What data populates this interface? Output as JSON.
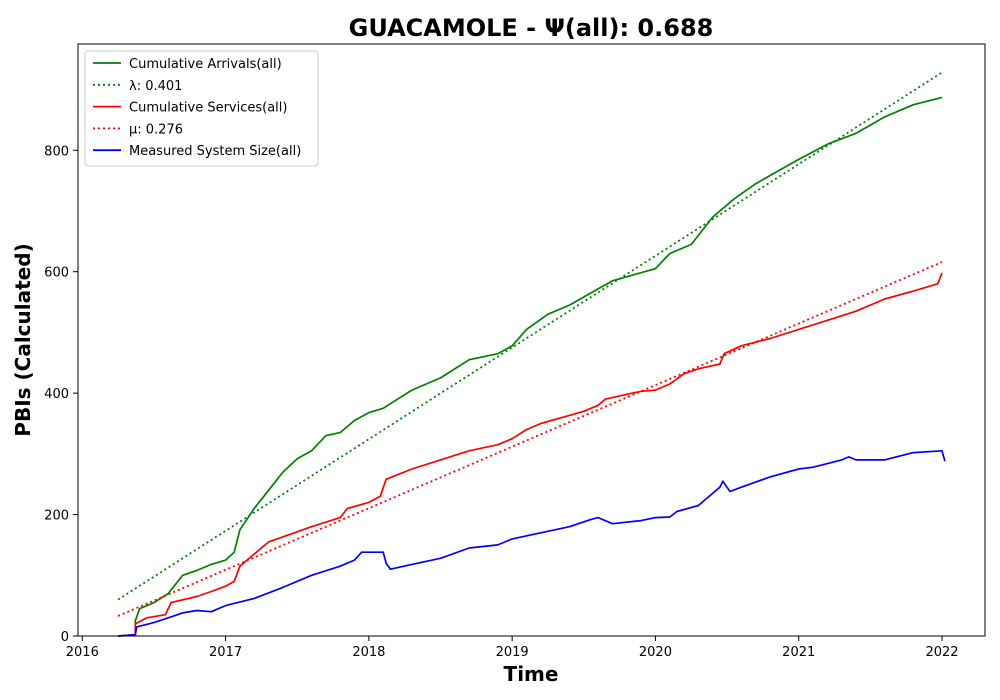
{
  "chart_data": {
    "type": "line",
    "title": "GUACAMOLE -  Ψ(all): 0.688",
    "xlabel": "Time",
    "ylabel": "PBIs (Calculated)",
    "xlim": [
      2015.97,
      2022.3
    ],
    "ylim": [
      0,
      975
    ],
    "x_ticks": [
      2016,
      2017,
      2018,
      2019,
      2020,
      2021,
      2022
    ],
    "x_tick_labels": [
      "2016",
      "2017",
      "2018",
      "2019",
      "2020",
      "2021",
      "2022"
    ],
    "y_ticks": [
      0,
      200,
      400,
      600,
      800
    ],
    "y_tick_labels": [
      "0",
      "200",
      "400",
      "600",
      "800"
    ],
    "legend_position": "top-left",
    "series": [
      {
        "name": "Cumulative Arrivals(all)",
        "color": "#008000",
        "style": "solid",
        "x": [
          2016.25,
          2016.37,
          2016.37,
          2016.4,
          2016.5,
          2016.6,
          2016.7,
          2016.8,
          2016.9,
          2017.0,
          2017.06,
          2017.1,
          2017.2,
          2017.3,
          2017.4,
          2017.5,
          2017.6,
          2017.7,
          2017.8,
          2017.9,
          2018.0,
          2018.1,
          2018.2,
          2018.3,
          2018.5,
          2018.7,
          2018.9,
          2019.0,
          2019.1,
          2019.25,
          2019.4,
          2019.55,
          2019.7,
          2019.85,
          2020.0,
          2020.1,
          2020.25,
          2020.4,
          2020.55,
          2020.7,
          2020.85,
          2021.0,
          2021.2,
          2021.4,
          2021.6,
          2021.8,
          2022.0
        ],
        "y": [
          0,
          2,
          25,
          45,
          55,
          70,
          100,
          108,
          118,
          125,
          138,
          175,
          210,
          240,
          270,
          292,
          305,
          330,
          335,
          355,
          368,
          375,
          390,
          405,
          425,
          455,
          465,
          478,
          505,
          530,
          545,
          565,
          585,
          595,
          605,
          630,
          645,
          690,
          720,
          745,
          765,
          785,
          810,
          828,
          855,
          875,
          887
        ]
      },
      {
        "name": "λ: 0.401",
        "color": "#008000",
        "style": "dotted",
        "x": [
          2016.25,
          2022.0
        ],
        "y": [
          60,
          928
        ]
      },
      {
        "name": "Cumulative Services(all)",
        "color": "#ff0000",
        "style": "solid",
        "x": [
          2016.25,
          2016.37,
          2016.37,
          2016.45,
          2016.58,
          2016.62,
          2016.8,
          2016.92,
          2017.0,
          2017.06,
          2017.1,
          2017.3,
          2017.6,
          2017.8,
          2017.85,
          2018.0,
          2018.08,
          2018.12,
          2018.3,
          2018.5,
          2018.7,
          2018.9,
          2019.0,
          2019.1,
          2019.2,
          2019.35,
          2019.5,
          2019.6,
          2019.65,
          2019.8,
          2019.9,
          2020.0,
          2020.1,
          2020.2,
          2020.3,
          2020.45,
          2020.48,
          2020.6,
          2020.8,
          2021.0,
          2021.2,
          2021.4,
          2021.6,
          2021.8,
          2021.97,
          2022.0
        ],
        "y": [
          0,
          2,
          20,
          30,
          35,
          55,
          65,
          75,
          82,
          90,
          115,
          155,
          180,
          195,
          210,
          220,
          230,
          258,
          275,
          290,
          305,
          315,
          325,
          340,
          350,
          360,
          370,
          380,
          390,
          398,
          403,
          405,
          415,
          432,
          440,
          448,
          465,
          478,
          490,
          505,
          520,
          535,
          555,
          568,
          580,
          598
        ]
      },
      {
        "name": "μ: 0.276",
        "color": "#ff0000",
        "style": "dotted",
        "x": [
          2016.25,
          2022.0
        ],
        "y": [
          33,
          616
        ]
      },
      {
        "name": "Measured System Size(all)",
        "color": "#0000ff",
        "style": "solid",
        "x": [
          2016.25,
          2016.37,
          2016.38,
          2016.5,
          2016.6,
          2016.7,
          2016.8,
          2016.9,
          2017.0,
          2017.2,
          2017.4,
          2017.6,
          2017.8,
          2017.9,
          2017.95,
          2018.1,
          2018.12,
          2018.15,
          2018.3,
          2018.5,
          2018.7,
          2018.9,
          2019.0,
          2019.2,
          2019.4,
          2019.55,
          2019.6,
          2019.7,
          2019.9,
          2020.0,
          2020.1,
          2020.15,
          2020.3,
          2020.45,
          2020.47,
          2020.52,
          2020.6,
          2020.8,
          2021.0,
          2021.1,
          2021.3,
          2021.35,
          2021.4,
          2021.6,
          2021.8,
          2022.0,
          2022.02
        ],
        "y": [
          0,
          2,
          15,
          22,
          30,
          38,
          42,
          40,
          50,
          62,
          80,
          100,
          115,
          125,
          138,
          138,
          120,
          110,
          118,
          128,
          145,
          150,
          160,
          170,
          180,
          192,
          195,
          185,
          190,
          195,
          196,
          205,
          215,
          245,
          255,
          238,
          245,
          262,
          275,
          278,
          290,
          295,
          290,
          290,
          302,
          305,
          288
        ]
      }
    ]
  }
}
